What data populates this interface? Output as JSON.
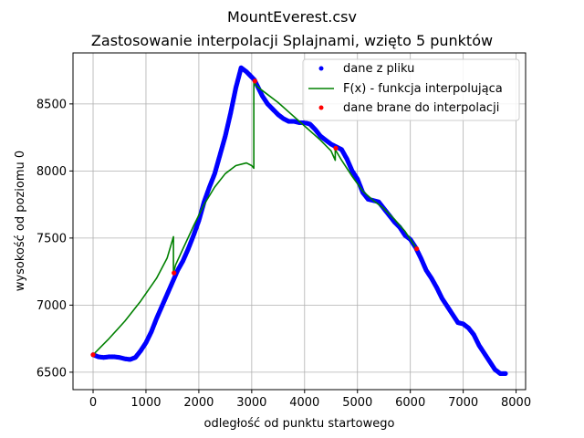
{
  "chart_data": {
    "type": "line",
    "title": "MountEverest.csv",
    "subtitle": "Zastosowanie interpolacji Splajnami, wzięto 5 punktów",
    "xlabel": "odległość od punktu startowego",
    "ylabel": "wysokość od poziomu 0",
    "xlim": [
      -380,
      8180
    ],
    "ylim": [
      6370,
      8880
    ],
    "xticks": [
      0,
      1000,
      2000,
      3000,
      4000,
      5000,
      6000,
      7000,
      8000
    ],
    "yticks": [
      6500,
      7000,
      7500,
      8000,
      8500
    ],
    "grid": true,
    "legend_position": "top-right",
    "legend": [
      {
        "label": "dane z pliku",
        "color": "#0000ff",
        "marker": "dot"
      },
      {
        "label": "F(x) - funkcja interpolująca",
        "color": "#008000",
        "marker": "line"
      },
      {
        "label": "dane brane do interpolacji",
        "color": "#ff0000",
        "marker": "dot"
      }
    ],
    "series": [
      {
        "name": "dane z pliku",
        "color": "#0000ff",
        "style": "dots",
        "x": [
          0,
          100,
          200,
          300,
          400,
          500,
          600,
          700,
          800,
          900,
          1000,
          1100,
          1200,
          1300,
          1400,
          1500,
          1600,
          1700,
          1800,
          1900,
          2000,
          2100,
          2200,
          2300,
          2400,
          2500,
          2600,
          2700,
          2800,
          2900,
          3000,
          3050,
          3100,
          3200,
          3300,
          3400,
          3500,
          3600,
          3700,
          3800,
          3900,
          4000,
          4100,
          4200,
          4300,
          4400,
          4500,
          4600,
          4700,
          4800,
          4900,
          5000,
          5100,
          5200,
          5300,
          5400,
          5500,
          5600,
          5700,
          5800,
          5900,
          6000,
          6100,
          6200,
          6300,
          6400,
          6500,
          6600,
          6700,
          6800,
          6900,
          7000,
          7100,
          7200,
          7300,
          7400,
          7500,
          7600,
          7700,
          7800
        ],
        "y": [
          6630,
          6615,
          6610,
          6615,
          6615,
          6610,
          6600,
          6595,
          6610,
          6660,
          6720,
          6800,
          6900,
          6990,
          7080,
          7170,
          7260,
          7330,
          7420,
          7520,
          7630,
          7770,
          7880,
          7980,
          8120,
          8260,
          8430,
          8620,
          8770,
          8740,
          8700,
          8680,
          8640,
          8560,
          8500,
          8460,
          8420,
          8390,
          8370,
          8370,
          8360,
          8360,
          8350,
          8310,
          8260,
          8230,
          8200,
          8180,
          8160,
          8090,
          8000,
          7940,
          7840,
          7790,
          7780,
          7770,
          7720,
          7670,
          7620,
          7580,
          7520,
          7490,
          7430,
          7350,
          7260,
          7200,
          7130,
          7050,
          6990,
          6930,
          6870,
          6860,
          6830,
          6780,
          6700,
          6640,
          6580,
          6520,
          6490,
          6490
        ]
      },
      {
        "name": "F(x) - funkcja interpolująca",
        "color": "#008000",
        "style": "line",
        "x": [
          0,
          300,
          600,
          900,
          1200,
          1400,
          1520,
          1520,
          1560,
          1700,
          1900,
          2100,
          2300,
          2500,
          2700,
          2900,
          3000,
          3040,
          3040,
          3100,
          3300,
          3500,
          3700,
          3900,
          4100,
          4300,
          4500,
          4580,
          4580,
          4700,
          4900,
          5100,
          5300,
          5500,
          5700,
          5900,
          6120
        ],
        "y": [
          6630,
          6750,
          6880,
          7030,
          7200,
          7350,
          7510,
          7240,
          7300,
          7420,
          7590,
          7750,
          7880,
          7980,
          8040,
          8060,
          8040,
          8020,
          8660,
          8630,
          8570,
          8510,
          8440,
          8370,
          8300,
          8230,
          8150,
          8080,
          8160,
          8080,
          7960,
          7850,
          7780,
          7720,
          7640,
          7550,
          7420
        ]
      },
      {
        "name": "dane brane do interpolacji",
        "color": "#ff0000",
        "style": "dots",
        "x": [
          0,
          1530,
          3060,
          4590,
          6120
        ],
        "y": [
          6630,
          7240,
          8670,
          8170,
          7420
        ]
      }
    ]
  }
}
